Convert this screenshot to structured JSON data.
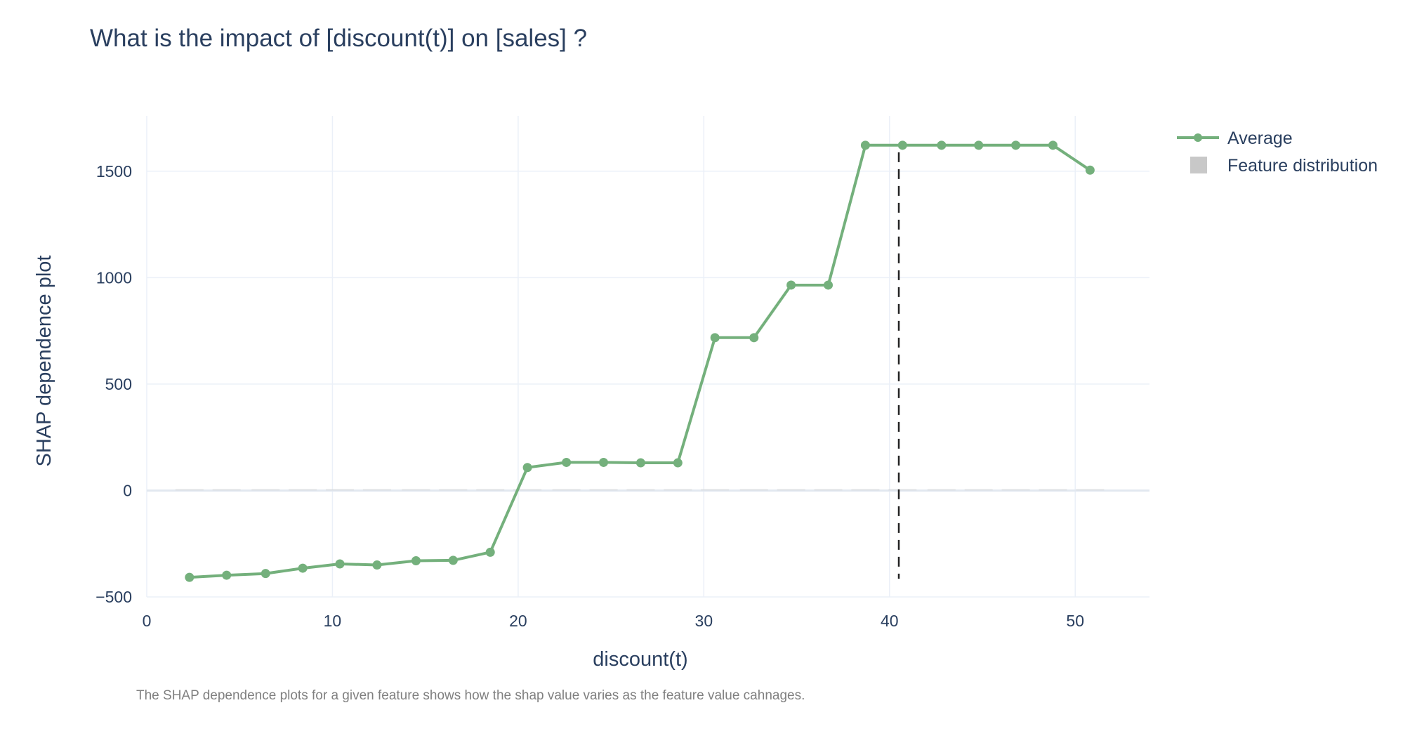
{
  "chart_data": {
    "type": "line",
    "title": "What is the impact of [discount(t)] on [sales] ?",
    "xlabel": "discount(t)",
    "ylabel": "SHAP dependence plot",
    "caption": "The SHAP dependence plots for a given feature shows how the shap value varies as the feature value cahnages.",
    "xlim": [
      0,
      54
    ],
    "ylim": [
      -500,
      1760
    ],
    "x_ticks": [
      0,
      10,
      20,
      30,
      40,
      50
    ],
    "y_ticks": [
      -500,
      0,
      500,
      1000,
      1500
    ],
    "x_tick_labels": [
      "0",
      "10",
      "20",
      "30",
      "40",
      "50"
    ],
    "y_tick_labels": [
      "−500",
      "0",
      "500",
      "1000",
      "1500"
    ],
    "grid": true,
    "legend": "top-right",
    "series": [
      {
        "name": "Average",
        "color": "#74b07c",
        "x": [
          2.3,
          4.3,
          6.4,
          8.4,
          10.4,
          12.4,
          14.5,
          16.5,
          18.5,
          20.5,
          22.6,
          24.6,
          26.6,
          28.6,
          30.6,
          32.7,
          34.7,
          36.7,
          38.7,
          40.7,
          42.8,
          44.8,
          46.8,
          48.8,
          50.8
        ],
        "values": [
          -408,
          -398,
          -390,
          -365,
          -345,
          -350,
          -330,
          -328,
          -290,
          108,
          132,
          132,
          130,
          130,
          718,
          718,
          965,
          965,
          1622,
          1622,
          1622,
          1622,
          1622,
          1622,
          1505
        ]
      },
      {
        "name": "Feature distribution",
        "color": "#c8c8c8",
        "type": "histogram"
      }
    ],
    "reference_line": {
      "x": 40.5,
      "style": "dashed",
      "color": "#222222"
    }
  }
}
